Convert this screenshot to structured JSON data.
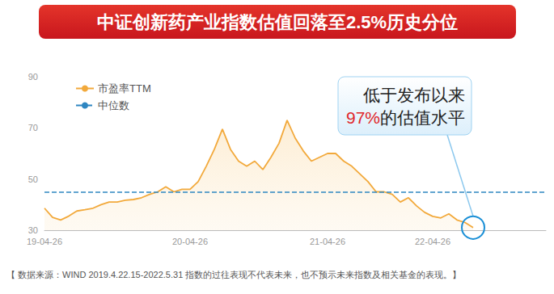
{
  "chart_data": {
    "type": "line",
    "title": "中证创新药产业指数估值回落至2.5%历史分位",
    "categories": [
      "19-04-26",
      null,
      null,
      null,
      null,
      null,
      null,
      null,
      null,
      null,
      null,
      null,
      null,
      null,
      null,
      null,
      null,
      null,
      "20-04-26",
      null,
      null,
      null,
      null,
      null,
      null,
      null,
      null,
      null,
      null,
      null,
      null,
      null,
      null,
      null,
      null,
      "21-04-26",
      null,
      null,
      null,
      null,
      null,
      null,
      null,
      null,
      null,
      null,
      null,
      null,
      "22-04-26",
      null,
      null,
      null,
      null,
      null,
      null,
      null,
      null,
      null,
      null,
      null,
      null,
      null,
      null
    ],
    "series": [
      {
        "name": "市盈率TTM",
        "color": "#f2a93b",
        "values": [
          38.6,
          35,
          34,
          35.5,
          37.5,
          38,
          38.6,
          40,
          41,
          41,
          41.7,
          42,
          42.7,
          44,
          45,
          47,
          45,
          46,
          46,
          49,
          55,
          61.6,
          69.5,
          61.6,
          57,
          55,
          57,
          53.7,
          58.5,
          64,
          73,
          66,
          61,
          57,
          58.5,
          60,
          60,
          57,
          55,
          52,
          49,
          45,
          45,
          44,
          41,
          42.7,
          39.5,
          37,
          35.4,
          34.8,
          36.4,
          34,
          33,
          31,
          null,
          null,
          null,
          null,
          null,
          null,
          null,
          null,
          null
        ]
      },
      {
        "name": "中位数",
        "type": "hline",
        "color": "#2e86c1",
        "line_style": "dashed",
        "value": 45
      }
    ],
    "ylim": [
      30,
      90
    ],
    "yticks": [
      30,
      50,
      70,
      90
    ],
    "grid": false,
    "legend": "upper left",
    "annotation": {
      "line1": "低于发布以来",
      "highlight": "97%",
      "line2": "的估值水平"
    },
    "source": "【 数据来源：WIND 2019.4.22.15-2022.5.31 指数的过往表现不代表未来，也不预示未来指数及相关基金的表现。】"
  }
}
